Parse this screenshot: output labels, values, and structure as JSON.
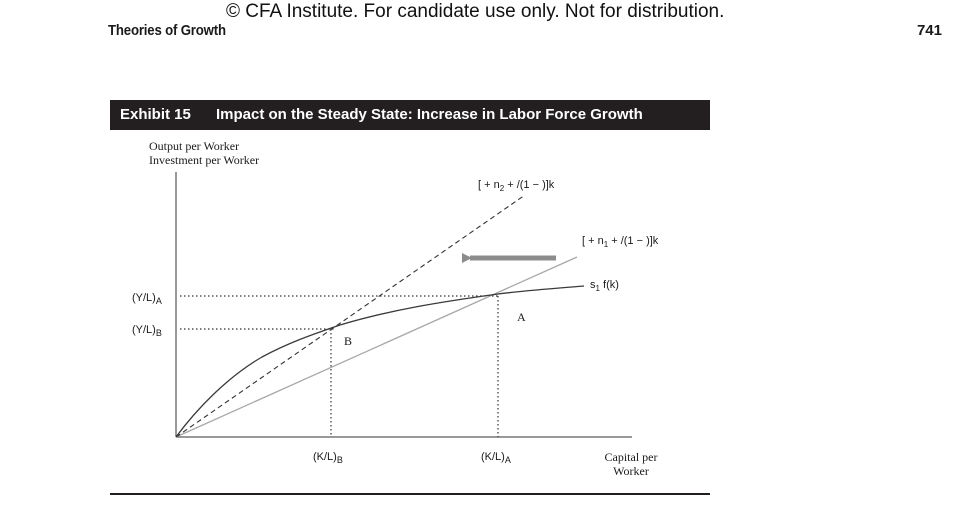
{
  "watermark": "© CFA Institute. For candidate use only. Not for distribution.",
  "running_head": "Theories of Growth",
  "page_number": "741",
  "exhibit": {
    "number": "Exhibit 15",
    "title": "Impact on the Steady State: Increase in Labor Force Growth"
  },
  "figure": {
    "y_axis_label_line1": "Output per Worker",
    "y_axis_label_line2": "Investment per Worker",
    "x_axis_label_line1": "Capital per",
    "x_axis_label_line2": "Worker",
    "y_ticks": {
      "ya_main": "(Y/L)",
      "ya_sub": "A",
      "yb_main": "(Y/L)",
      "yb_sub": "B"
    },
    "x_ticks": {
      "kb_main": "(K/L)",
      "kb_sub": "B",
      "ka_main": "(K/L)",
      "ka_sub": "A"
    },
    "curves": {
      "savings_main": "s",
      "savings_sub": "1",
      "savings_rest": " f(k)",
      "line_n2_pre": "[ + n",
      "line_n2_sub": "2",
      "line_n2_post": " + /(1 − )]k",
      "line_n1_pre": "[ + n",
      "line_n1_sub": "1",
      "line_n1_post": " + /(1 − )]k"
    },
    "points": {
      "a": "A",
      "b": "B"
    },
    "colors": {
      "savings_curve": "#3a3a3a",
      "line_n1": "#a8a8a8",
      "line_n2": "#333333",
      "arrow": "#8c8c8c",
      "axis": "#333333"
    }
  }
}
